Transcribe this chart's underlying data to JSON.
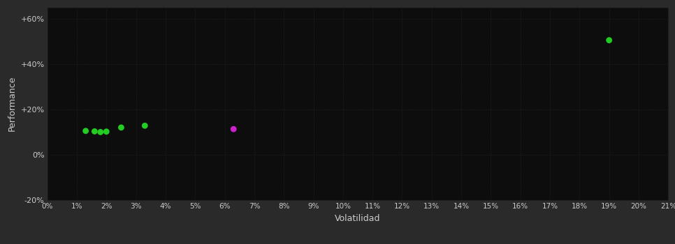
{
  "background_color": "#2a2a2a",
  "plot_bg_color": "#0d0d0d",
  "grid_color": "#2a4a2a",
  "text_color": "#cccccc",
  "xlabel": "Volatilidad",
  "ylabel": "Performance",
  "xlim": [
    0.0,
    0.21
  ],
  "ylim": [
    -0.2,
    0.65
  ],
  "ytick_vals": [
    -0.2,
    0.0,
    0.2,
    0.4,
    0.6
  ],
  "ytick_labels": [
    "-20%",
    "0%",
    "+20%",
    "+40%",
    "+60%"
  ],
  "green_points": [
    [
      0.013,
      0.105
    ],
    [
      0.016,
      0.103
    ],
    [
      0.018,
      0.1
    ],
    [
      0.02,
      0.102
    ],
    [
      0.025,
      0.12
    ],
    [
      0.033,
      0.128
    ],
    [
      0.19,
      0.505
    ]
  ],
  "magenta_points": [
    [
      0.063,
      0.113
    ]
  ],
  "green_color": "#22cc22",
  "magenta_color": "#cc22cc",
  "marker_size": 40,
  "grid_alpha": 0.6,
  "grid_linewidth": 0.5
}
